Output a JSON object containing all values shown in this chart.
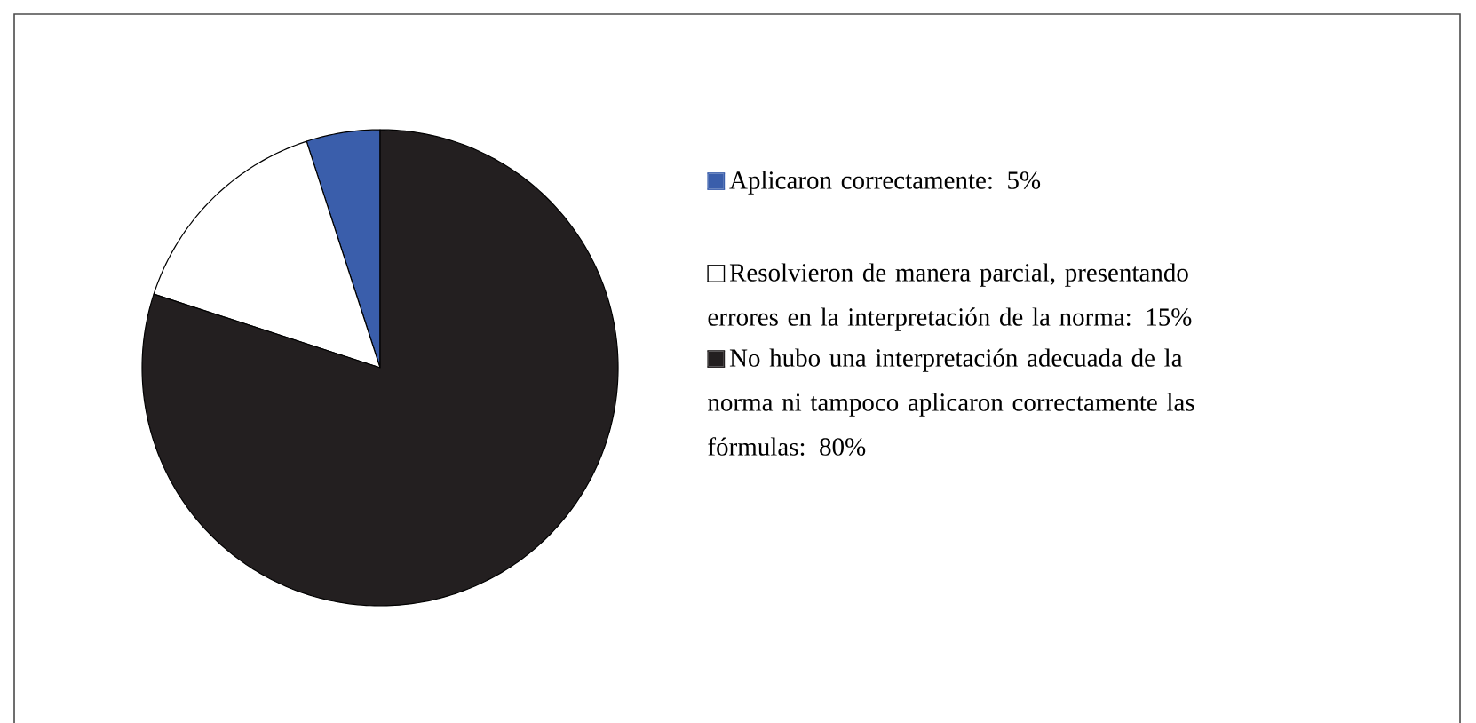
{
  "chart_data": {
    "type": "pie",
    "categories": [
      "Aplicaron correctamente: 5%",
      "Resolvieron de manera parcial, presentando errores en  la interpretación de la norma: 15%",
      "No hubo una interpretación adecuada de la norma ni tampoco aplicaron correctamente las fórmulas: 80%"
    ],
    "values": [
      5,
      15,
      80
    ],
    "colors": [
      "#3a5eab",
      "#ffffff",
      "#231f20"
    ],
    "legend": "right"
  }
}
